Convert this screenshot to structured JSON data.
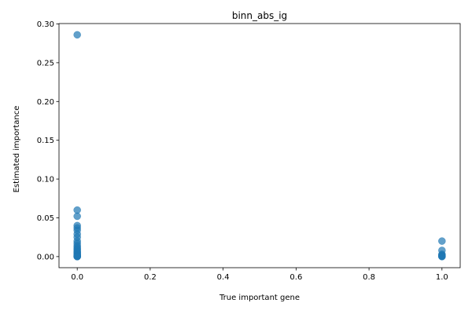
{
  "chart_data": {
    "type": "scatter",
    "title": "binn_abs_ig",
    "xlabel": "True important gene",
    "ylabel": "Estimated importance",
    "xlim": [
      -0.05,
      1.05
    ],
    "ylim": [
      -0.0143,
      0.3005
    ],
    "xticks": [
      "0.0",
      "0.2",
      "0.4",
      "0.6",
      "0.8",
      "1.0"
    ],
    "yticks": [
      "0.00",
      "0.05",
      "0.10",
      "0.15",
      "0.20",
      "0.25",
      "0.30"
    ],
    "xtick_values": [
      0.0,
      0.2,
      0.4,
      0.6,
      0.8,
      1.0
    ],
    "ytick_values": [
      0.0,
      0.05,
      0.1,
      0.15,
      0.2,
      0.25,
      0.3
    ],
    "grid": false,
    "marker_color": "#1f77b4",
    "marker_alpha": 0.7,
    "series": [
      {
        "x": [
          0,
          0,
          0,
          0,
          0,
          0,
          0,
          0,
          0,
          0,
          0,
          0,
          0,
          0,
          0,
          0,
          0,
          0,
          0,
          0,
          0,
          0,
          0,
          0,
          0,
          0,
          0,
          0,
          0,
          1,
          1,
          1,
          1,
          1,
          1,
          1,
          1,
          1,
          1
        ],
        "y": [
          0.286,
          0.06,
          0.052,
          0.04,
          0.037,
          0.034,
          0.029,
          0.025,
          0.02,
          0.017,
          0.014,
          0.012,
          0.01,
          0.009,
          0.007,
          0.006,
          0.005,
          0.004,
          0.003,
          0.002,
          0.0015,
          0.001,
          0.0008,
          0.0005,
          0.0003,
          0.0002,
          0.0001,
          5e-05,
          0.0,
          0.02,
          0.008,
          0.003,
          0.002,
          0.0015,
          0.001,
          0.0007,
          0.0004,
          0.0002,
          0.0
        ]
      }
    ]
  }
}
